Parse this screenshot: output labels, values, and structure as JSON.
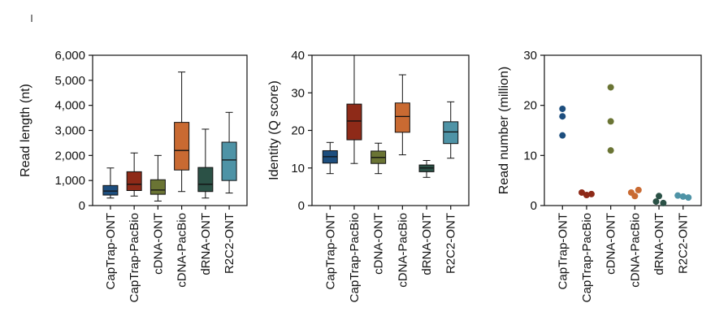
{
  "colors": {
    "CapTrap-ONT": "#1d4e7e",
    "CapTrap-PacBio": "#8e2a18",
    "cDNA-ONT": "#6a7434",
    "cDNA-PacBio": "#c96a32",
    "dRNA-ONT": "#2b5146",
    "R2C2-ONT": "#4e93a6"
  },
  "chart_data": [
    {
      "type": "box",
      "ylabel": "Read length (nt)",
      "ylim": [
        0,
        6000
      ],
      "yticks": [
        0,
        1000,
        2000,
        3000,
        4000,
        5000,
        6000
      ],
      "ytick_labels": [
        "0",
        "1,000",
        "2,000",
        "3,000",
        "4,000",
        "5,000",
        "6,000"
      ],
      "categories": [
        "CapTrap-ONT",
        "CapTrap-PacBio",
        "cDNA-ONT",
        "cDNA-PacBio",
        "dRNA-ONT",
        "R2C2-ONT"
      ],
      "boxes": [
        {
          "whislo": 300,
          "q1": 420,
          "med": 580,
          "q3": 800,
          "whishi": 1500
        },
        {
          "whislo": 380,
          "q1": 600,
          "med": 850,
          "q3": 1350,
          "whishi": 2100
        },
        {
          "whislo": 180,
          "q1": 450,
          "med": 620,
          "q3": 1030,
          "whishi": 2000
        },
        {
          "whislo": 560,
          "q1": 1420,
          "med": 2200,
          "q3": 3320,
          "whishi": 5330
        },
        {
          "whislo": 300,
          "q1": 560,
          "med": 850,
          "q3": 1520,
          "whishi": 3050
        },
        {
          "whislo": 500,
          "q1": 1000,
          "med": 1820,
          "q3": 2530,
          "whishi": 3720
        }
      ]
    },
    {
      "type": "box",
      "ylabel": "Identity (Q score)",
      "ylim": [
        0,
        40
      ],
      "yticks": [
        0,
        10,
        20,
        30,
        40
      ],
      "ytick_labels": [
        "0",
        "10",
        "20",
        "30",
        "40"
      ],
      "categories": [
        "CapTrap-ONT",
        "CapTrap-PacBio",
        "cDNA-ONT",
        "cDNA-PacBio",
        "dRNA-ONT",
        "R2C2-ONT"
      ],
      "boxes": [
        {
          "whislo": 8.5,
          "q1": 11.3,
          "med": 13.0,
          "q3": 14.6,
          "whishi": 16.8
        },
        {
          "whislo": 11.2,
          "q1": 17.5,
          "med": 22.5,
          "q3": 27.0,
          "whishi": 40.0
        },
        {
          "whislo": 8.5,
          "q1": 11.2,
          "med": 12.8,
          "q3": 14.5,
          "whishi": 16.6
        },
        {
          "whislo": 13.5,
          "q1": 19.5,
          "med": 23.7,
          "q3": 27.3,
          "whishi": 34.8
        },
        {
          "whislo": 7.5,
          "q1": 9.0,
          "med": 10.0,
          "q3": 10.8,
          "whishi": 12.0
        },
        {
          "whislo": 12.6,
          "q1": 16.5,
          "med": 19.6,
          "q3": 22.3,
          "whishi": 27.6
        }
      ]
    },
    {
      "type": "scatter",
      "ylabel": "Read number (million)",
      "ylim": [
        0,
        30
      ],
      "yticks": [
        0,
        10,
        20,
        30
      ],
      "ytick_labels": [
        "0",
        "10",
        "20",
        "30"
      ],
      "categories": [
        "CapTrap-ONT",
        "CapTrap-PacBio",
        "cDNA-ONT",
        "cDNA-PacBio",
        "dRNA-ONT",
        "R2C2-ONT"
      ],
      "points": [
        [
          {
            "offset": 0.0,
            "y": 19.3
          },
          {
            "offset": 0.0,
            "y": 17.8
          },
          {
            "offset": 0.0,
            "y": 14.0
          }
        ],
        [
          {
            "offset": -0.2,
            "y": 2.6
          },
          {
            "offset": 0.0,
            "y": 2.1
          },
          {
            "offset": 0.2,
            "y": 2.3
          }
        ],
        [
          {
            "offset": 0.0,
            "y": 23.6
          },
          {
            "offset": 0.0,
            "y": 16.8
          },
          {
            "offset": 0.0,
            "y": 11.0
          }
        ],
        [
          {
            "offset": -0.15,
            "y": 2.6
          },
          {
            "offset": 0.15,
            "y": 3.1
          },
          {
            "offset": 0.0,
            "y": 1.9
          }
        ],
        [
          {
            "offset": 0.0,
            "y": 1.9
          },
          {
            "offset": -0.12,
            "y": 0.8
          },
          {
            "offset": 0.18,
            "y": 0.5
          }
        ],
        [
          {
            "offset": -0.22,
            "y": 2.0
          },
          {
            "offset": 0.0,
            "y": 1.8
          },
          {
            "offset": 0.22,
            "y": 1.6
          }
        ]
      ]
    }
  ]
}
